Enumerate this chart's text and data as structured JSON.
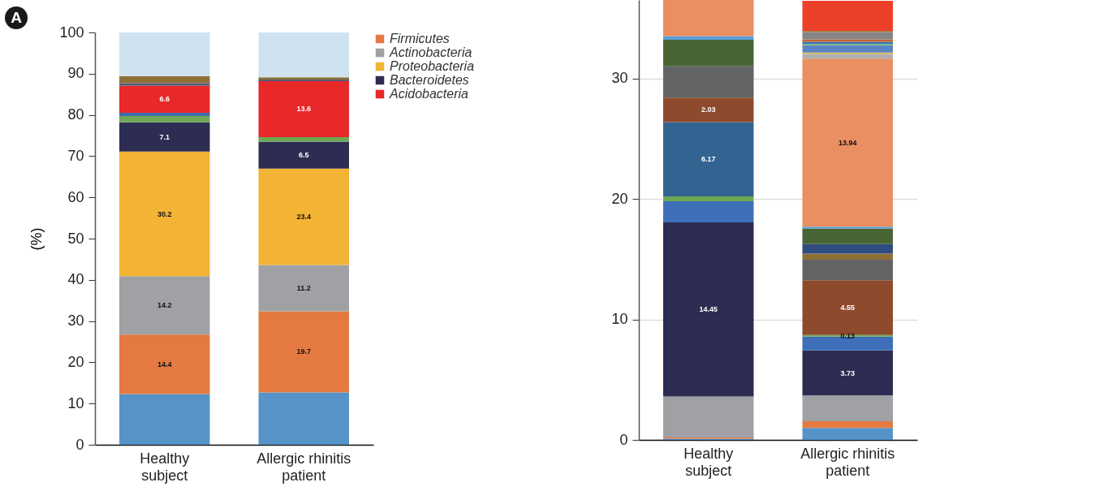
{
  "chart_data": [
    {
      "type": "bar",
      "stacked": true,
      "ylabel": "(%)",
      "annotations": [
        "A"
      ],
      "categories": [
        "Healthy subject",
        "Allergic rhinitis patient"
      ],
      "ylim": [
        0,
        100
      ],
      "yticks": [
        0,
        10,
        20,
        30,
        40,
        50,
        60,
        70,
        80,
        90,
        100
      ],
      "grid": false,
      "legend": "right",
      "series": [
        {
          "color": "#5593c8",
          "values": [
            12.3,
            12.7
          ]
        },
        {
          "name": "Firmicutes",
          "color": "#e47a41",
          "values": [
            14.4,
            19.7
          ],
          "value_labels": [
            "14.4",
            "19.7"
          ]
        },
        {
          "name": "Actinobacteria",
          "color": "#a0a1a4",
          "values": [
            14.2,
            11.2
          ],
          "value_labels": [
            "14.2",
            "11.2"
          ]
        },
        {
          "name": "Proteobacteria",
          "color": "#f3b335",
          "values": [
            30.2,
            23.4
          ],
          "value_labels": [
            "30.2",
            "23.4"
          ]
        },
        {
          "name": "Bacteroidetes",
          "color": "#2d2c53",
          "values": [
            7.1,
            6.5
          ],
          "value_labels": [
            "7.1",
            "6.5"
          ]
        },
        {
          "color": "#6fa855",
          "values": [
            1.5,
            1.1
          ]
        },
        {
          "color": "#3e6fb0",
          "values": [
            0.8,
            null
          ]
        },
        {
          "name": "Acidobacteria",
          "color": "#e9282a",
          "values": [
            6.6,
            13.6
          ],
          "value_labels": [
            "6.6",
            "13.6"
          ]
        },
        {
          "color": "#4f5e7b",
          "values": [
            0.6,
            0.4
          ]
        },
        {
          "color": "#8e6f36",
          "values": [
            1.7,
            0.5
          ]
        },
        {
          "color": "#cfe2f0",
          "values": [
            10.6,
            10.9
          ]
        }
      ]
    },
    {
      "type": "bar",
      "stacked": true,
      "categories": [
        "Healthy subject",
        "Allergic rhinitis patient"
      ],
      "ylim": [
        0,
        36.5
      ],
      "yticks": [
        0,
        10,
        20,
        30
      ],
      "grid": "y",
      "series": [
        {
          "color": "#5593c8",
          "values": [
            0.1,
            1.0
          ]
        },
        {
          "color": "#e47a41",
          "values": [
            0.1,
            0.55
          ]
        },
        {
          "color": "#a0a1a4",
          "values": [
            3.4,
            2.14
          ]
        },
        {
          "color": "#2d2c53",
          "values": [
            14.45,
            3.73
          ],
          "value_labels": [
            "14.45",
            "3.73"
          ]
        },
        {
          "color": "#3e6fb8",
          "values": [
            1.75,
            1.15
          ]
        },
        {
          "color": "#6fa855",
          "values": [
            0.4,
            0.13
          ],
          "value_labels": [
            null,
            "0.13"
          ]
        },
        {
          "color": "#336391",
          "values": [
            6.17,
            null
          ],
          "value_labels": [
            "6.17",
            null
          ]
        },
        {
          "color": "#8e4a2c",
          "values": [
            2.03,
            4.55
          ],
          "value_labels": [
            "2.03",
            "4.55"
          ]
        },
        {
          "color": "#636466",
          "values": [
            2.6,
            1.7
          ]
        },
        {
          "color": "#8e6f36",
          "values": [
            null,
            0.5
          ]
        },
        {
          "color": "#2f4d80",
          "values": [
            null,
            0.8
          ]
        },
        {
          "color": "#4a6535",
          "values": [
            2.2,
            1.3
          ]
        },
        {
          "color": "#5aa0d8",
          "values": [
            0.3,
            0.15
          ]
        },
        {
          "color": "#e98f61",
          "values": [
            3.0,
            13.94
          ],
          "value_labels": [
            null,
            "13.94"
          ]
        },
        {
          "color": "#b0b0b0",
          "values": [
            null,
            0.4
          ]
        },
        {
          "color": "#e8b93a",
          "values": [
            null,
            0.1
          ]
        },
        {
          "color": "#5b85c5",
          "values": [
            null,
            0.6
          ]
        },
        {
          "color": "#7cb35a",
          "values": [
            null,
            0.1
          ]
        },
        {
          "color": "#2e75b6",
          "values": [
            null,
            0.2
          ]
        },
        {
          "color": "#c8602e",
          "values": [
            null,
            0.2
          ]
        },
        {
          "color": "#858585",
          "values": [
            null,
            0.6
          ]
        },
        {
          "color": "#a07a3a",
          "values": [
            null,
            0.1
          ]
        },
        {
          "color": "#ed4029",
          "values": [
            null,
            2.5
          ]
        }
      ]
    }
  ]
}
